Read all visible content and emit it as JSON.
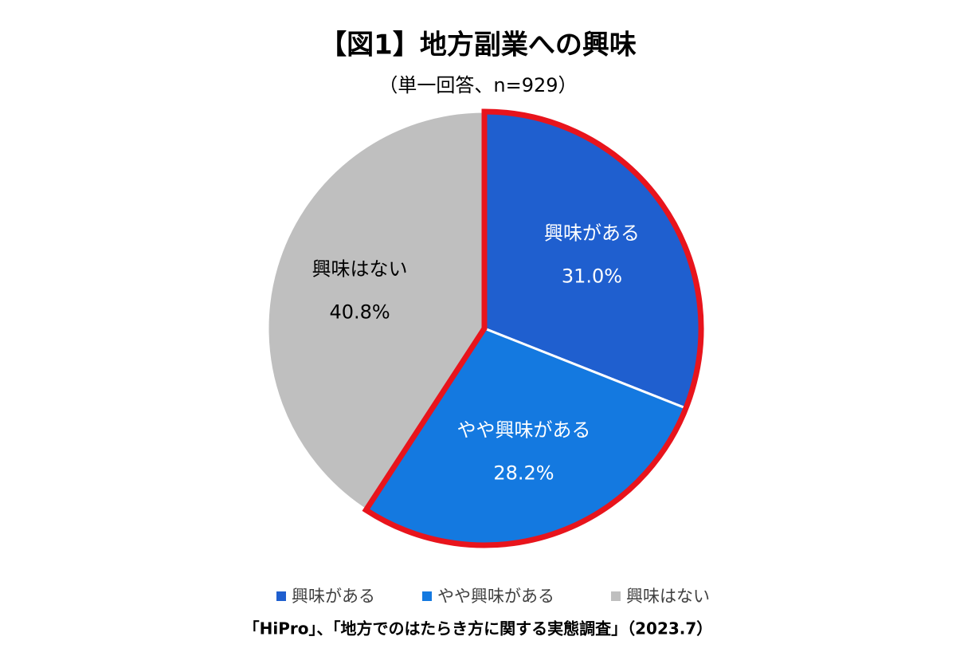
{
  "chart_data": {
    "type": "pie",
    "title": "【図1】地方副業への興味",
    "subtitle": "（単一回答、n=929）",
    "categories": [
      "興味がある",
      "やや興味がある",
      "興味はない"
    ],
    "values": [
      31.0,
      28.2,
      40.8
    ],
    "value_labels": [
      "31.0%",
      "28.2%",
      "40.8%"
    ],
    "colors": [
      "#1f5fcf",
      "#1479e0",
      "#bfbfbf"
    ],
    "highlight_color": "#e8141c",
    "source": "「HiPro」、「地方でのはたらき方に関する実態調査」（2023.7）"
  }
}
